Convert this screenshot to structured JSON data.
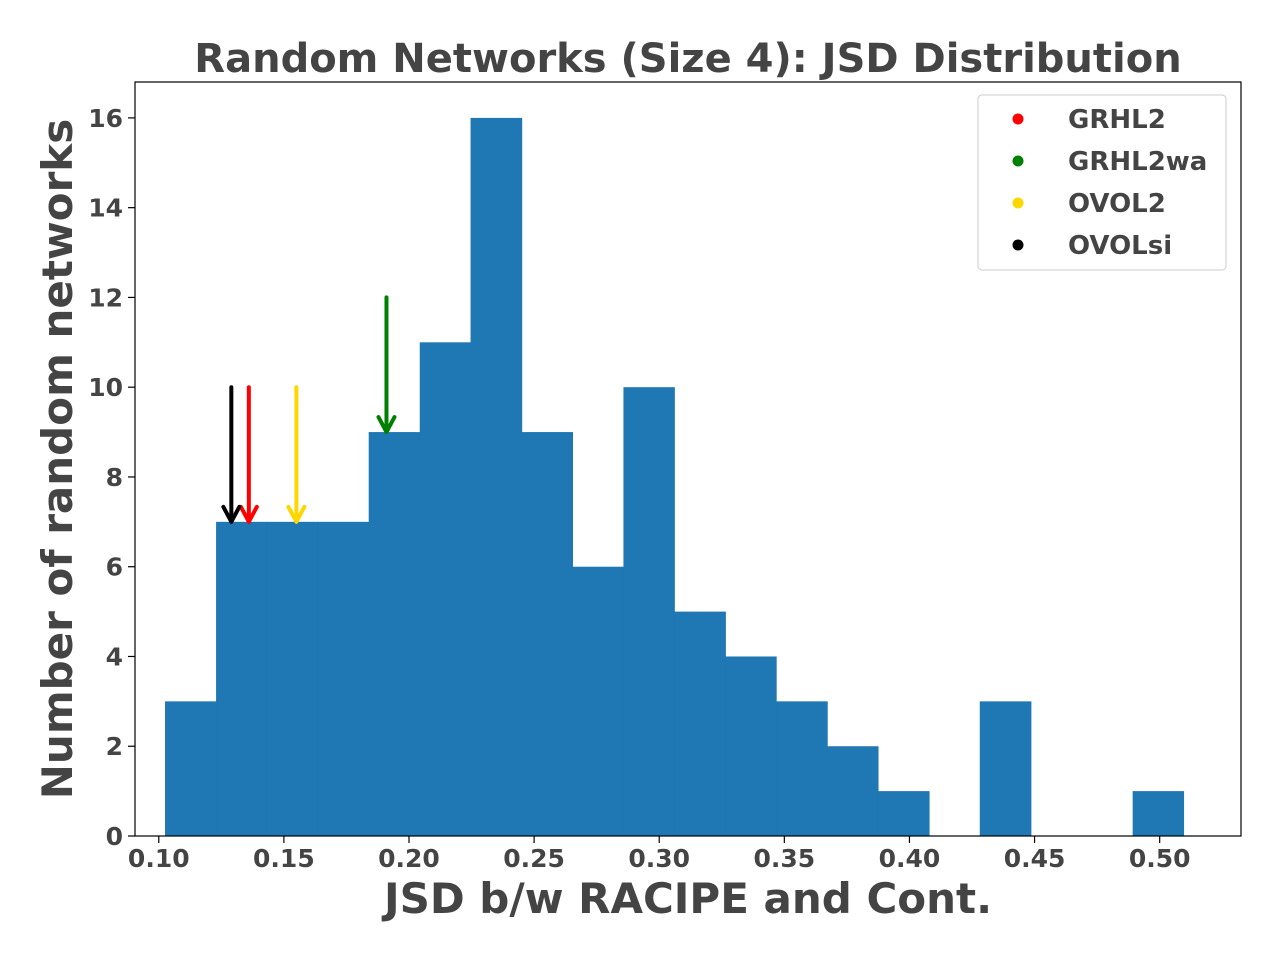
{
  "chart_data": {
    "type": "bar",
    "title": "Random Networks (Size 4): JSD Distribution",
    "xlabel": "JSD b/w RACIPE and Cont.",
    "ylabel": "Number of random networks",
    "xlim": [
      0.0905,
      0.5325
    ],
    "ylim": [
      0,
      16.8
    ],
    "xticks": [
      "0.10",
      "0.15",
      "0.20",
      "0.25",
      "0.30",
      "0.35",
      "0.40",
      "0.45",
      "0.50"
    ],
    "xtick_values": [
      0.1,
      0.15,
      0.2,
      0.25,
      0.3,
      0.35,
      0.4,
      0.45,
      0.5
    ],
    "yticks": [
      "0",
      "2",
      "4",
      "6",
      "8",
      "10",
      "12",
      "14",
      "16"
    ],
    "ytick_values": [
      0,
      2,
      4,
      6,
      8,
      10,
      12,
      14,
      16
    ],
    "bar_color": "#1f77b4",
    "bins": [
      {
        "start": 0.1025,
        "end": 0.1229,
        "count": 3
      },
      {
        "start": 0.1229,
        "end": 0.1432,
        "count": 7
      },
      {
        "start": 0.1432,
        "end": 0.1636,
        "count": 7
      },
      {
        "start": 0.1636,
        "end": 0.1839,
        "count": 7
      },
      {
        "start": 0.1839,
        "end": 0.2043,
        "count": 9
      },
      {
        "start": 0.2043,
        "end": 0.2246,
        "count": 11
      },
      {
        "start": 0.2246,
        "end": 0.245,
        "count": 16
      },
      {
        "start": 0.245,
        "end": 0.2653,
        "count": 9
      },
      {
        "start": 0.2653,
        "end": 0.2857,
        "count": 6
      },
      {
        "start": 0.2857,
        "end": 0.306,
        "count": 10
      },
      {
        "start": 0.306,
        "end": 0.3264,
        "count": 5
      },
      {
        "start": 0.3264,
        "end": 0.3467,
        "count": 4
      },
      {
        "start": 0.3467,
        "end": 0.3671,
        "count": 3
      },
      {
        "start": 0.3671,
        "end": 0.3874,
        "count": 2
      },
      {
        "start": 0.3874,
        "end": 0.4078,
        "count": 1
      },
      {
        "start": 0.4078,
        "end": 0.4281,
        "count": 0
      },
      {
        "start": 0.4281,
        "end": 0.4485,
        "count": 3
      },
      {
        "start": 0.4485,
        "end": 0.4688,
        "count": 0
      },
      {
        "start": 0.4688,
        "end": 0.4892,
        "count": 0
      },
      {
        "start": 0.4892,
        "end": 0.5095,
        "count": 1
      }
    ],
    "markers": [
      {
        "name": "GRHL2",
        "color": "#ff0000",
        "x": 0.136,
        "y_from": 10,
        "y_to": 7
      },
      {
        "name": "GRHL2wa",
        "color": "#008000",
        "x": 0.191,
        "y_from": 12,
        "y_to": 9
      },
      {
        "name": "OVOL2",
        "color": "#ffd700",
        "x": 0.155,
        "y_from": 10,
        "y_to": 7
      },
      {
        "name": "OVOLsi",
        "color": "#000000",
        "x": 0.129,
        "y_from": 10,
        "y_to": 7
      }
    ],
    "legend": {
      "position": "top-right",
      "entries": [
        {
          "label": "GRHL2",
          "color": "#ff0000"
        },
        {
          "label": "GRHL2wa",
          "color": "#008000"
        },
        {
          "label": "OVOL2",
          "color": "#ffd700"
        },
        {
          "label": "OVOLsi",
          "color": "#000000"
        }
      ]
    },
    "grid": false
  }
}
